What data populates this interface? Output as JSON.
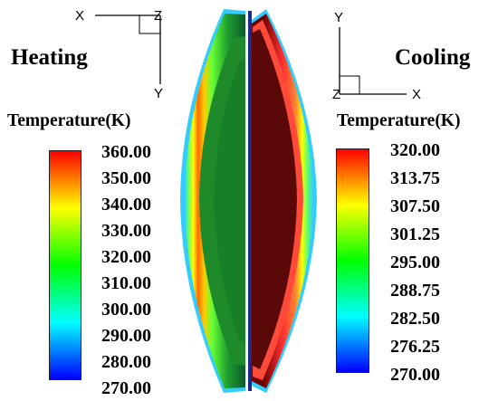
{
  "heating": {
    "title": "Heating",
    "legend_title": "Temperature(K)",
    "ticks": [
      "360.00",
      "350.00",
      "340.00",
      "330.00",
      "320.00",
      "310.00",
      "300.00",
      "290.00",
      "280.00",
      "270.00"
    ],
    "range": [
      270,
      360
    ],
    "axes": {
      "horizontal": "X",
      "out": "Z",
      "vertical": "Y"
    }
  },
  "cooling": {
    "title": "Cooling",
    "legend_title": "Temperature(K)",
    "ticks": [
      "320.00",
      "313.75",
      "307.50",
      "301.25",
      "295.00",
      "288.75",
      "282.50",
      "276.25",
      "270.00"
    ],
    "range": [
      270,
      320
    ],
    "axes": {
      "vertical": "Y",
      "out": "Z",
      "horizontal": "X"
    }
  },
  "colormap": [
    "#ff0000",
    "#ff8000",
    "#ffff00",
    "#80ff00",
    "#00ff00",
    "#00ff80",
    "#00ffff",
    "#0080ff",
    "#0000ff"
  ],
  "colors": {
    "heating_core": "#1f8a2a",
    "cooling_core": "#5a0808",
    "cooling_rim": "#ff4a3a",
    "rim_outer": "#33ccff",
    "divider": "#1a2a8a"
  }
}
